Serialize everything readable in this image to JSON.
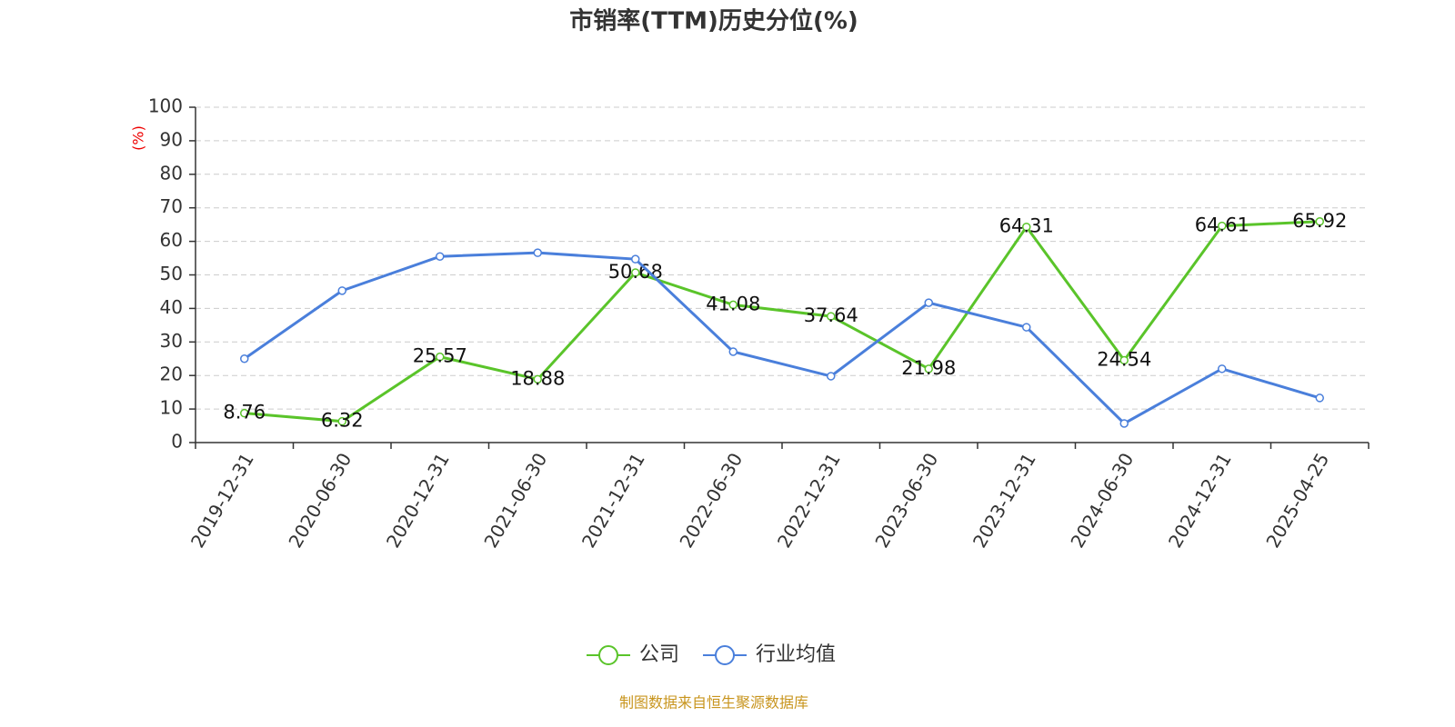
{
  "chart_data": {
    "type": "line",
    "title": "市销率(TTM)历史分位(%)",
    "y_label": "(%)",
    "categories": [
      "2019-12-31",
      "2020-06-30",
      "2020-12-31",
      "2021-06-30",
      "2021-12-31",
      "2022-06-30",
      "2022-12-31",
      "2023-06-30",
      "2023-12-31",
      "2024-06-30",
      "2024-12-31",
      "2025-04-25"
    ],
    "series": [
      {
        "name": "公司",
        "color": "#5ac42a",
        "data_labels": true,
        "values": [
          8.76,
          6.32,
          25.57,
          18.88,
          50.68,
          41.08,
          37.64,
          21.98,
          64.31,
          24.54,
          64.61,
          65.92
        ]
      },
      {
        "name": "行业均值",
        "color": "#4a7fdb",
        "data_labels": false,
        "values": [
          25,
          45.3,
          55.5,
          56.6,
          54.7,
          27.1,
          19.8,
          41.7,
          34.4,
          5.7,
          22,
          13.3
        ]
      }
    ],
    "ylim": [
      0,
      100
    ],
    "yticks": [
      0,
      10,
      20,
      30,
      40,
      50,
      60,
      70,
      80,
      90,
      100
    ],
    "grid": true,
    "legend": "bottom",
    "source": "制图数据来自恒生聚源数据库"
  }
}
